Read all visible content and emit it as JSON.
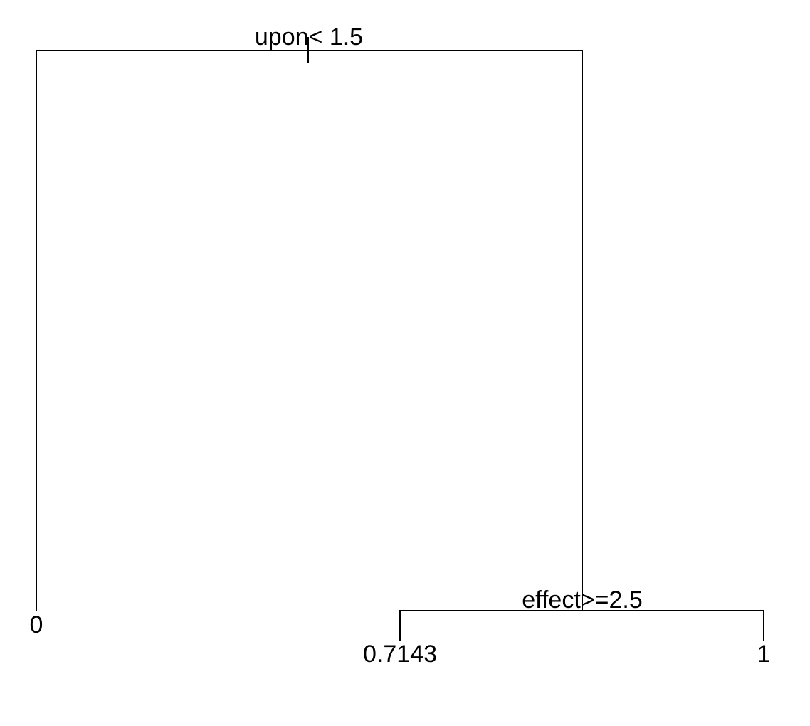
{
  "tree": {
    "root_split": "upon< 1.5",
    "right_split": "effect>=2.5",
    "leaves": [
      "0",
      "0.7143",
      "1"
    ]
  },
  "colors": {
    "line": "#000000",
    "background": "#ffffff"
  }
}
